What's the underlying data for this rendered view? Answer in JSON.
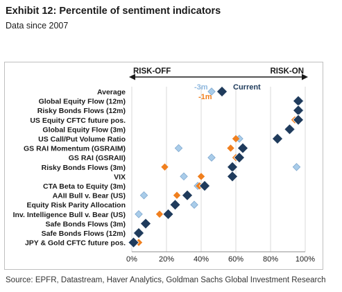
{
  "title": "Exhibit 12: Percentile of sentiment indicators",
  "subtitle": "Data since 2007",
  "footer": "Source: EPFR, Datastream, Haver Analytics, Goldman Sachs Global Investment Research",
  "colors": {
    "current": "#1f3b5c",
    "m1": "#f07f1e",
    "m3": "#a9cce9",
    "m3_text": "#8fb9e0",
    "border": "#bfbfbf",
    "grid": "#d9d9d9",
    "text": "#1a1a1a"
  },
  "chart_data": {
    "type": "scatter",
    "direction_labels": {
      "left": "RISK-OFF",
      "right": "RISK-ON"
    },
    "legend_labels": {
      "m3": "-3m",
      "m1": "-1m",
      "current": "Current"
    },
    "x_ticks": [
      "0%",
      "20%",
      "40%",
      "60%",
      "80%",
      "100%"
    ],
    "xlim": [
      0,
      100
    ],
    "categories": [
      "Average",
      "Global Equity Flow (12m)",
      "Risky Bonds Flows (12m)",
      "US Equity CFTC future pos.",
      "Global Equity Flow (3m)",
      "US Call/Put Volume Ratio",
      "GS RAI Momentum (GSRAIM)",
      "GS RAI (GSRAII)",
      "Risky Bonds Flows (3m)",
      "VIX",
      "CTA Beta to Equity (3m)",
      "AAII Bull v. Bear (US)",
      "Equity Risk Parity Allocation",
      "Inv. Intelligence Bull v. Bear (US)",
      "Safe Bonds Flows (3m)",
      "Safe Bonds Flows (12m)",
      "JPY & Gold CFTC future pos."
    ],
    "series": [
      {
        "key": "m3",
        "values": [
          46,
          97,
          97,
          96,
          92,
          62,
          27,
          46,
          95,
          30,
          38,
          7,
          36,
          4,
          8,
          3,
          1
        ]
      },
      {
        "key": "m1",
        "values": [
          null,
          96,
          95,
          94,
          90,
          60,
          57,
          60,
          19,
          40,
          39,
          26,
          24,
          16,
          7,
          4,
          4
        ]
      },
      {
        "key": "current",
        "values": [
          52,
          96,
          96,
          96,
          91,
          84,
          64,
          62,
          58,
          58,
          42,
          32,
          25,
          21,
          8,
          4,
          1
        ]
      }
    ]
  }
}
